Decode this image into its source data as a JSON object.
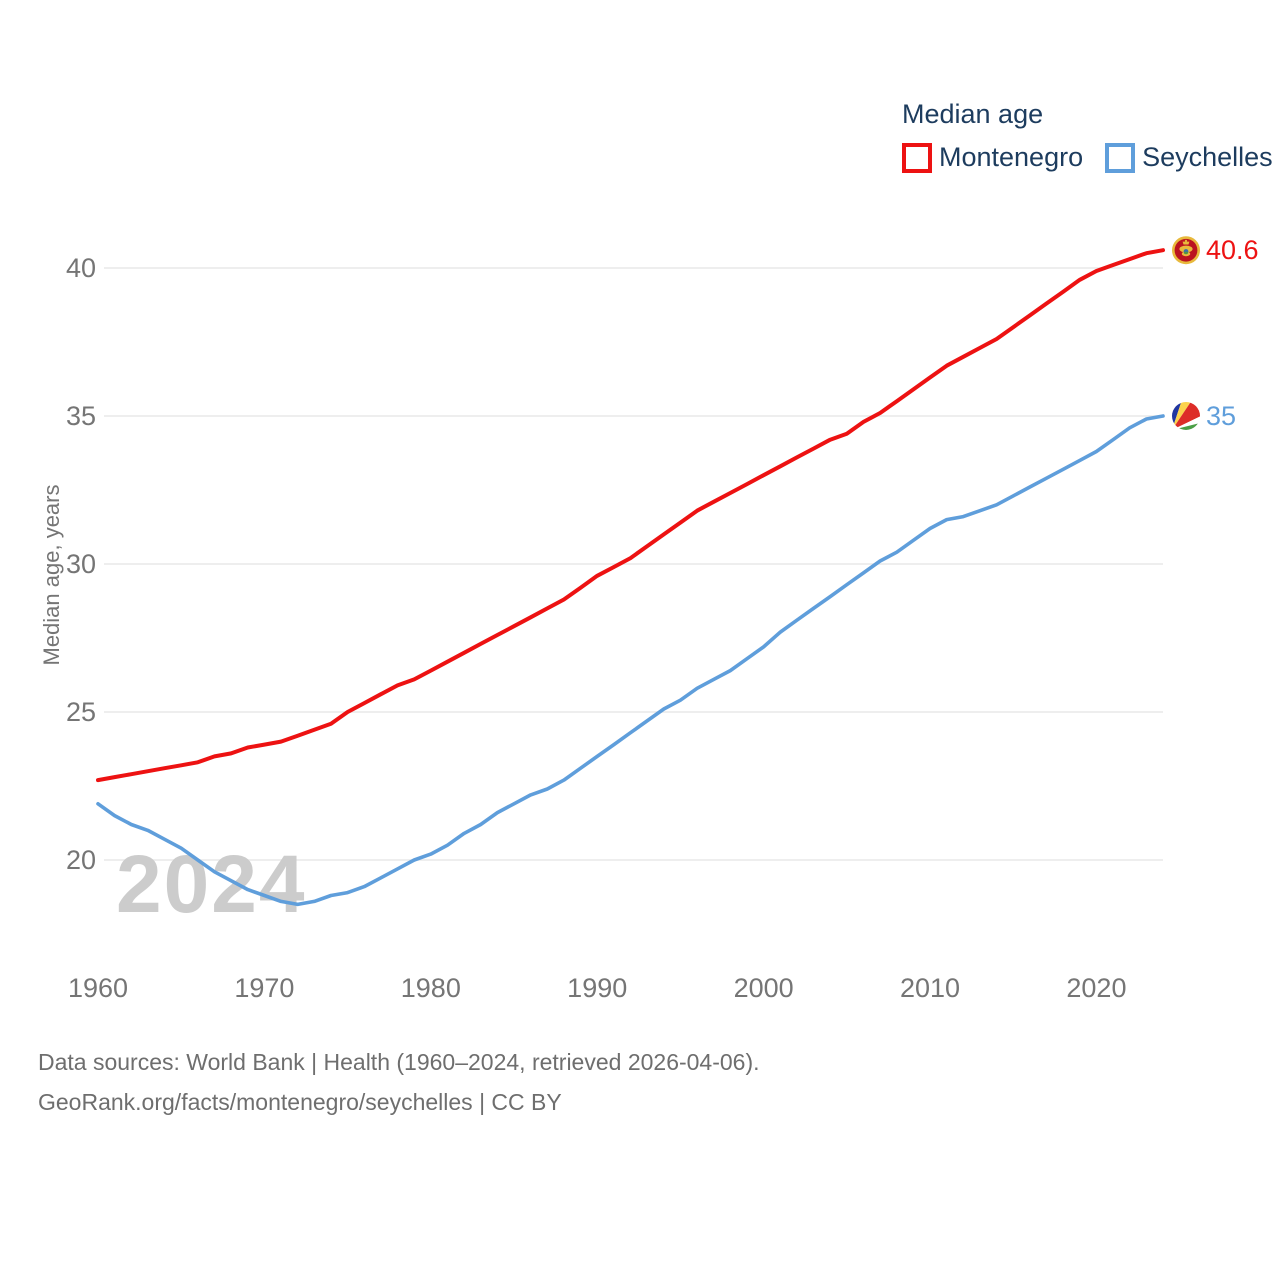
{
  "legend": {
    "title": "Median age",
    "items": [
      {
        "label": "Montenegro",
        "color": "#ed1212"
      },
      {
        "label": "Seychelles",
        "color": "#5f9edb"
      }
    ]
  },
  "axis": {
    "y_title": "Median age, years",
    "y_ticks": [
      20,
      25,
      30,
      35,
      40
    ],
    "x_ticks": [
      1960,
      1970,
      1980,
      1990,
      2000,
      2010,
      2020
    ]
  },
  "watermark": "2024",
  "end_labels": [
    {
      "series": "Montenegro",
      "value": "40.6",
      "color": "#ed1212",
      "flag": "montenegro-flag-icon"
    },
    {
      "series": "Seychelles",
      "value": "35",
      "color": "#5f9edb",
      "flag": "seychelles-flag-icon"
    }
  ],
  "footer": {
    "line1": "Data sources: World Bank | Health (1960–2024, retrieved 2026-04-06).",
    "line2": "GeoRank.org/facts/montenegro/seychelles | CC BY"
  },
  "chart_data": {
    "type": "line",
    "title": "Median age",
    "xlabel": "",
    "ylabel": "Median age, years",
    "xlim": [
      1960,
      2024
    ],
    "ylim": [
      18,
      42
    ],
    "grid": "horizontal",
    "legend_position": "top-right",
    "x": [
      1960,
      1961,
      1962,
      1963,
      1964,
      1965,
      1966,
      1967,
      1968,
      1969,
      1970,
      1971,
      1972,
      1973,
      1974,
      1975,
      1976,
      1977,
      1978,
      1979,
      1980,
      1981,
      1982,
      1983,
      1984,
      1985,
      1986,
      1987,
      1988,
      1989,
      1990,
      1991,
      1992,
      1993,
      1994,
      1995,
      1996,
      1997,
      1998,
      1999,
      2000,
      2001,
      2002,
      2003,
      2004,
      2005,
      2006,
      2007,
      2008,
      2009,
      2010,
      2011,
      2012,
      2013,
      2014,
      2015,
      2016,
      2017,
      2018,
      2019,
      2020,
      2021,
      2022,
      2023,
      2024
    ],
    "series": [
      {
        "name": "Montenegro",
        "color": "#ed1212",
        "end_value": 40.6,
        "values": [
          22.7,
          22.8,
          22.9,
          23.0,
          23.1,
          23.2,
          23.3,
          23.5,
          23.6,
          23.8,
          23.9,
          24.0,
          24.2,
          24.4,
          24.6,
          25.0,
          25.3,
          25.6,
          25.9,
          26.1,
          26.4,
          26.7,
          27.0,
          27.3,
          27.6,
          27.9,
          28.2,
          28.5,
          28.8,
          29.2,
          29.6,
          29.9,
          30.2,
          30.6,
          31.0,
          31.4,
          31.8,
          32.1,
          32.4,
          32.7,
          33.0,
          33.3,
          33.6,
          33.9,
          34.2,
          34.4,
          34.8,
          35.1,
          35.5,
          35.9,
          36.3,
          36.7,
          37.0,
          37.3,
          37.6,
          38.0,
          38.4,
          38.8,
          39.2,
          39.6,
          39.9,
          40.1,
          40.3,
          40.5,
          40.6
        ]
      },
      {
        "name": "Seychelles",
        "color": "#5f9edb",
        "end_value": 35,
        "values": [
          21.9,
          21.5,
          21.2,
          21.0,
          20.7,
          20.4,
          20.0,
          19.6,
          19.3,
          19.0,
          18.8,
          18.6,
          18.5,
          18.6,
          18.8,
          18.9,
          19.1,
          19.4,
          19.7,
          20.0,
          20.2,
          20.5,
          20.9,
          21.2,
          21.6,
          21.9,
          22.2,
          22.4,
          22.7,
          23.1,
          23.5,
          23.9,
          24.3,
          24.7,
          25.1,
          25.4,
          25.8,
          26.1,
          26.4,
          26.8,
          27.2,
          27.7,
          28.1,
          28.5,
          28.9,
          29.3,
          29.7,
          30.1,
          30.4,
          30.8,
          31.2,
          31.5,
          31.6,
          31.8,
          32.0,
          32.3,
          32.6,
          32.9,
          33.2,
          33.5,
          33.8,
          34.2,
          34.6,
          34.9,
          35.0
        ]
      }
    ]
  }
}
